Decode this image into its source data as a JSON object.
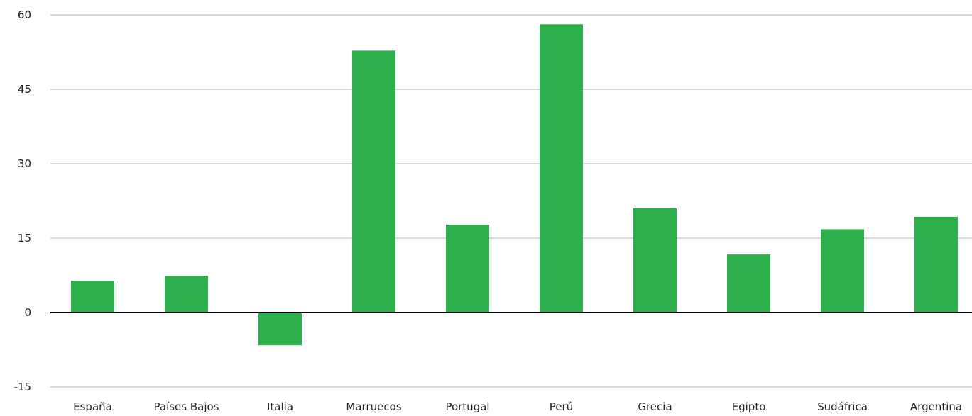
{
  "colors": {
    "bar": "#2db04b",
    "grid": "#b3b3b3",
    "zero_line": "#000000",
    "text": "#222222"
  },
  "chart_data": {
    "type": "bar",
    "title": "",
    "xlabel": "",
    "ylabel": "",
    "categories": [
      "España",
      "Países Bajos",
      "Italia",
      "Marruecos",
      "Portugal",
      "Perú",
      "Grecia",
      "Egipto",
      "Sudáfrica",
      "Argentina"
    ],
    "values": [
      6.4,
      7.4,
      -6.6,
      52.8,
      17.7,
      58.1,
      21.0,
      11.7,
      16.8,
      19.3
    ],
    "ylim": [
      -15,
      60
    ],
    "yticks": [
      -15,
      0,
      15,
      30,
      45,
      60
    ],
    "ytick_labels": [
      "-15",
      "0",
      "15",
      "30",
      "45",
      "60"
    ],
    "grid": true,
    "legend": "none"
  }
}
